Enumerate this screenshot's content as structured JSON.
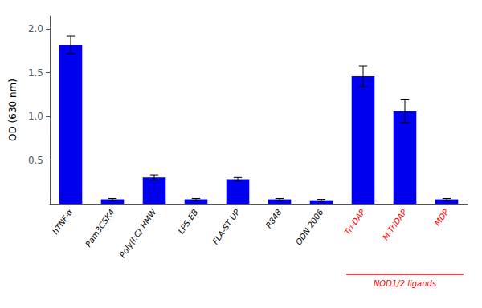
{
  "chart_data": {
    "type": "bar",
    "categories": [
      "hTNF-α",
      "Pam3CSK4",
      "Poly(I:C) HMW",
      "LPS-EB",
      "FLA-ST UP",
      "R848",
      "ODN 2006",
      "Tri-DAP",
      "M-TriDAP",
      "MDP"
    ],
    "values": [
      1.82,
      0.05,
      0.3,
      0.05,
      0.28,
      0.05,
      0.04,
      1.46,
      1.06,
      0.05
    ],
    "errors": [
      0.1,
      0.01,
      0.03,
      0.01,
      0.02,
      0.01,
      0.01,
      0.12,
      0.13,
      0.01
    ],
    "color": "#0000EE",
    "ylabel": "OD (630 nm)",
    "ylim": [
      0,
      2.15
    ],
    "yticks": [
      0.5,
      {
        "value": 1,
        "label": "1.0"
      },
      1.5,
      {
        "value": 2,
        "label": "2.0"
      }
    ],
    "grid": false,
    "annotations": [
      {
        "text": "NOD1/2 ligands",
        "color": "#FF0000",
        "categories": [
          "Tri-DAP",
          "M-TriDAP",
          "MDP"
        ]
      }
    ]
  }
}
